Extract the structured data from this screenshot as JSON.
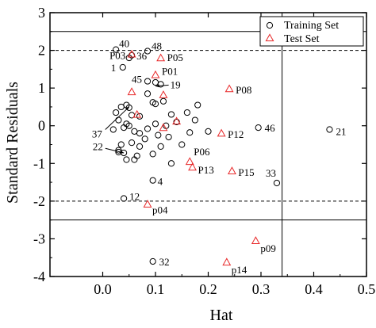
{
  "chart_data": {
    "type": "scatter",
    "xlabel": "Hat",
    "ylabel": "Standard Residuals",
    "xlim": [
      -0.1,
      0.5
    ],
    "ylim": [
      -4,
      3
    ],
    "xticks": [
      "0.0",
      "0.1",
      "0.2",
      "0.3",
      "0.4",
      "0.5"
    ],
    "yticks": [
      "-4",
      "-3",
      "-2",
      "-1",
      "0",
      "1",
      "2",
      "3"
    ],
    "xtick_values": [
      0.0,
      0.1,
      0.2,
      0.3,
      0.4,
      0.5
    ],
    "ytick_values": [
      -4,
      -3,
      -2,
      -1,
      0,
      1,
      2,
      3
    ],
    "legend": {
      "position": "top-right",
      "entries": [
        "Training Set",
        "Test Set"
      ]
    },
    "reference_lines": {
      "solid_y": [
        2.5,
        -2.5
      ],
      "dashed_y": [
        2,
        -2
      ],
      "solid_x": [
        0.34
      ]
    },
    "series": [
      {
        "name": "Training Set",
        "marker": "circle",
        "color": "#000000",
        "points": [
          {
            "x": 0.025,
            "y": 2.02,
            "label": "40"
          },
          {
            "x": 0.085,
            "y": 1.98,
            "label": "48"
          },
          {
            "x": 0.055,
            "y": 1.87,
            "label": "36"
          },
          {
            "x": 0.05,
            "y": 1.8
          },
          {
            "x": 0.038,
            "y": 1.55,
            "label": "1"
          },
          {
            "x": 0.085,
            "y": 1.18,
            "label": "45"
          },
          {
            "x": 0.1,
            "y": 1.15
          },
          {
            "x": 0.11,
            "y": 1.1
          },
          {
            "x": 0.1,
            "y": 0.58
          },
          {
            "x": 0.085,
            "y": 0.85
          },
          {
            "x": 0.115,
            "y": 0.65
          },
          {
            "x": 0.18,
            "y": 0.55
          },
          {
            "x": 0.16,
            "y": 0.35
          },
          {
            "x": 0.095,
            "y": 0.62
          },
          {
            "x": 0.035,
            "y": 0.5
          },
          {
            "x": 0.045,
            "y": 0.55
          },
          {
            "x": 0.05,
            "y": 0.48
          },
          {
            "x": 0.025,
            "y": 0.35
          },
          {
            "x": 0.055,
            "y": 0.28
          },
          {
            "x": 0.07,
            "y": 0.25
          },
          {
            "x": 0.03,
            "y": 0.15
          },
          {
            "x": 0.045,
            "y": 0.05
          },
          {
            "x": 0.05,
            "y": 0.0
          },
          {
            "x": 0.04,
            "y": -0.05
          },
          {
            "x": 0.02,
            "y": -0.1
          },
          {
            "x": 0.06,
            "y": -0.15
          },
          {
            "x": 0.07,
            "y": -0.2
          },
          {
            "x": 0.085,
            "y": -0.08
          },
          {
            "x": 0.1,
            "y": 0.05
          },
          {
            "x": 0.12,
            "y": 0.0
          },
          {
            "x": 0.14,
            "y": 0.1
          },
          {
            "x": 0.105,
            "y": -0.25
          },
          {
            "x": 0.125,
            "y": -0.3
          },
          {
            "x": 0.08,
            "y": -0.35
          },
          {
            "x": 0.055,
            "y": -0.45
          },
          {
            "x": 0.07,
            "y": -0.55
          },
          {
            "x": 0.035,
            "y": -0.5
          },
          {
            "x": 0.065,
            "y": -0.8
          },
          {
            "x": 0.045,
            "y": -0.9
          },
          {
            "x": 0.03,
            "y": -0.65
          },
          {
            "x": 0.095,
            "y": -0.75
          },
          {
            "x": 0.11,
            "y": -0.55
          },
          {
            "x": 0.15,
            "y": -0.5
          },
          {
            "x": 0.13,
            "y": -1.0
          },
          {
            "x": 0.06,
            "y": -0.9
          },
          {
            "x": 0.04,
            "y": -0.72,
            "label": "22"
          },
          {
            "x": 0.03,
            "y": -0.7
          },
          {
            "x": 0.165,
            "y": -0.18
          },
          {
            "x": 0.2,
            "y": -0.15
          },
          {
            "x": 0.175,
            "y": 0.15
          },
          {
            "x": 0.13,
            "y": 0.3
          },
          {
            "x": 0.295,
            "y": -0.05,
            "label": "46"
          },
          {
            "x": 0.43,
            "y": -0.1,
            "label": "21"
          },
          {
            "x": 0.33,
            "y": -1.52,
            "label": "33"
          },
          {
            "x": 0.095,
            "y": -1.45,
            "label": "4"
          },
          {
            "x": 0.04,
            "y": -1.93,
            "label": "12"
          },
          {
            "x": 0.095,
            "y": -3.6,
            "label": "32"
          }
        ]
      },
      {
        "name": "Test Set",
        "marker": "triangle",
        "color": "#e8292a",
        "points": [
          {
            "x": 0.055,
            "y": 1.9,
            "label": "P03"
          },
          {
            "x": 0.11,
            "y": 1.8,
            "label": "P05"
          },
          {
            "x": 0.1,
            "y": 1.35,
            "label": "P01"
          },
          {
            "x": 0.055,
            "y": 0.9
          },
          {
            "x": 0.115,
            "y": 0.82
          },
          {
            "x": 0.24,
            "y": 0.98,
            "label": "P08"
          },
          {
            "x": 0.065,
            "y": 0.3
          },
          {
            "x": 0.14,
            "y": 0.12
          },
          {
            "x": 0.115,
            "y": -0.05
          },
          {
            "x": 0.225,
            "y": -0.2,
            "label": "P12"
          },
          {
            "x": 0.165,
            "y": -0.95,
            "label": "P06"
          },
          {
            "x": 0.17,
            "y": -1.1,
            "label": "P13"
          },
          {
            "x": 0.245,
            "y": -1.2,
            "label": "P15"
          },
          {
            "x": 0.085,
            "y": -2.08,
            "label": "p04"
          },
          {
            "x": 0.29,
            "y": -3.05,
            "label": "p09"
          },
          {
            "x": 0.235,
            "y": -3.62,
            "label": "p14"
          }
        ]
      }
    ],
    "annotations": [
      {
        "text": "19",
        "x": 0.1,
        "y": 1.05,
        "from_text_at": [
          0.125,
          1.08
        ]
      },
      {
        "text": "37",
        "x": 0.05,
        "y": 0.5,
        "from_text_at": [
          0.005,
          -0.1
        ]
      },
      {
        "text": "22",
        "x": 0.04,
        "y": -0.72,
        "from_text_at": [
          0.005,
          -0.6
        ]
      }
    ]
  }
}
